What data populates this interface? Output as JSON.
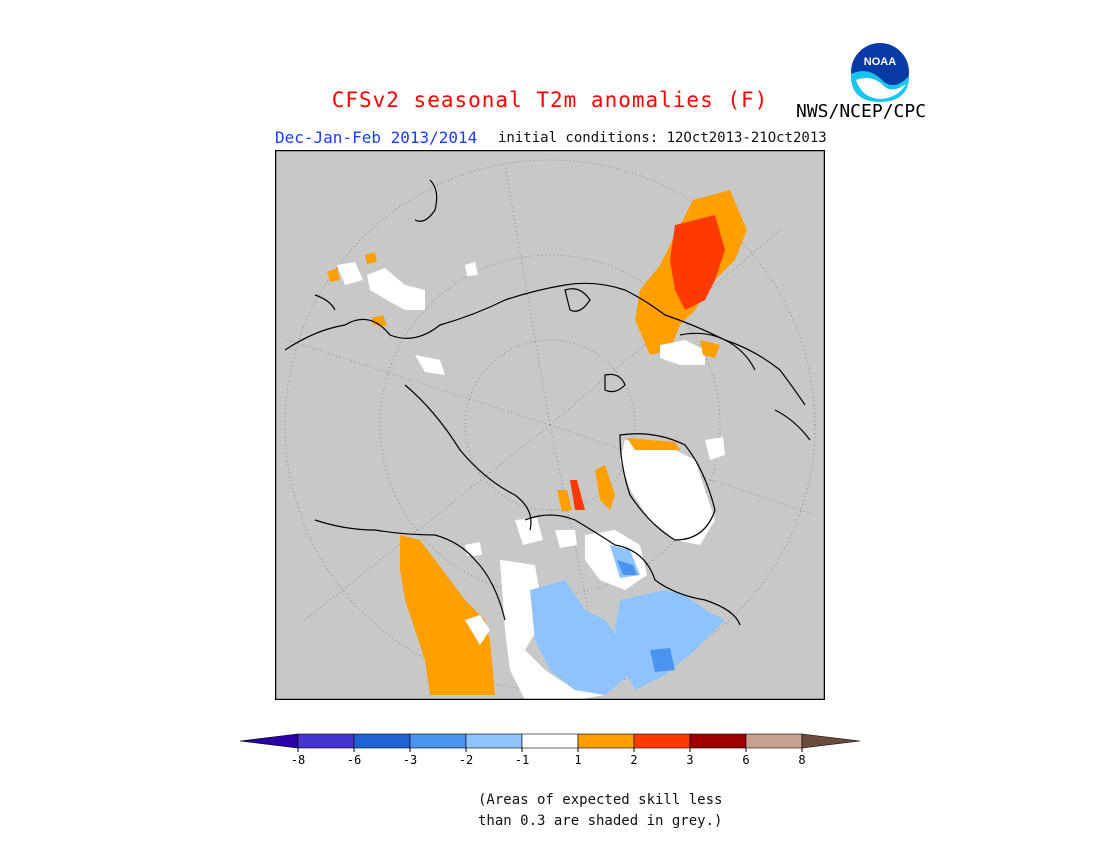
{
  "header": {
    "title": "CFSv2 seasonal T2m anomalies (F)",
    "season": "Dec-Jan-Feb 2013/2014",
    "initial_conditions": "initial conditions: 12Oct2013-21Oct2013",
    "agency": "NWS/NCEP/CPC",
    "logo_text": "NOAA"
  },
  "colors": {
    "masked": "#c8c8c8",
    "land_outline": "#000000",
    "grid": "#8a8a8a"
  },
  "legend": {
    "ticks": [
      "-8",
      "-6",
      "-3",
      "-2",
      "-1",
      "1",
      "2",
      "3",
      "6",
      "8"
    ],
    "colors": [
      "#2a00a8",
      "#4634d0",
      "#1f62d6",
      "#4a93ee",
      "#8ec3ff",
      "#ffffff",
      "#ff9f00",
      "#ff3a00",
      "#a00000",
      "#c8a090",
      "#6a4a3a"
    ]
  },
  "note": {
    "line1": "(Areas of expected skill less",
    "line2": "than 0.3 are shaded in grey.)"
  }
}
